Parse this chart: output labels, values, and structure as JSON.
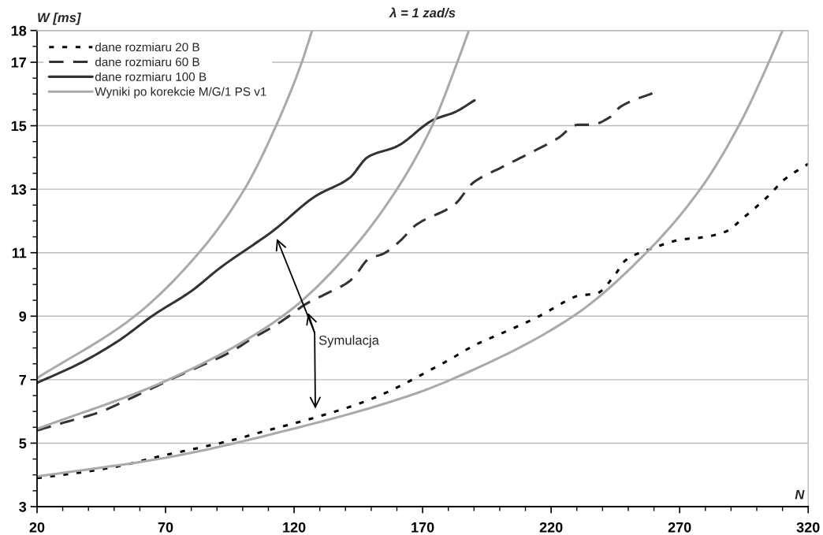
{
  "chart_data": {
    "type": "line",
    "title": "λ = 1 zad/s",
    "xlabel": "N",
    "ylabel": "W [ms]",
    "xlim": [
      20,
      320
    ],
    "xticks": [
      20,
      {
        "value": 30,
        "label": null
      },
      {
        "value": 40,
        "label": null
      },
      {
        "value": 50,
        "label": null
      },
      {
        "value": 60,
        "label": null
      },
      70,
      {
        "value": 80,
        "label": null
      },
      {
        "value": 90,
        "label": null
      },
      {
        "value": 100,
        "label": null
      },
      {
        "value": 110,
        "label": null
      },
      120,
      {
        "value": 130,
        "label": null
      },
      {
        "value": 140,
        "label": null
      },
      {
        "value": 150,
        "label": null
      },
      {
        "value": 160,
        "label": null
      },
      170,
      {
        "value": 180,
        "label": null
      },
      {
        "value": 190,
        "label": null
      },
      {
        "value": 200,
        "label": null
      },
      {
        "value": 210,
        "label": null
      },
      220,
      {
        "value": 230,
        "label": null
      },
      {
        "value": 240,
        "label": null
      },
      {
        "value": 250,
        "label": null
      },
      {
        "value": 260,
        "label": null
      },
      270,
      {
        "value": 280,
        "label": null
      },
      {
        "value": 290,
        "label": null
      },
      {
        "value": 300,
        "label": null
      },
      {
        "value": 310,
        "label": null
      },
      320
    ],
    "ylim": [
      3,
      18
    ],
    "yticks": [
      3,
      {
        "value": 3.5,
        "label": null
      },
      {
        "value": 4,
        "label": null
      },
      {
        "value": 4.5,
        "label": null
      },
      5,
      {
        "value": 5.5,
        "label": null
      },
      {
        "value": 6,
        "label": null
      },
      {
        "value": 6.5,
        "label": null
      },
      7,
      {
        "value": 7.5,
        "label": null
      },
      {
        "value": 8,
        "label": null
      },
      {
        "value": 8.5,
        "label": null
      },
      9,
      {
        "value": 9.5,
        "label": null
      },
      {
        "value": 10,
        "label": null
      },
      {
        "value": 10.5,
        "label": null
      },
      11,
      {
        "value": 11.5,
        "label": null
      },
      {
        "value": 12,
        "label": null
      },
      {
        "value": 12.5,
        "label": null
      },
      13,
      {
        "value": 13.5,
        "label": null
      },
      {
        "value": 14,
        "label": null
      },
      {
        "value": 14.5,
        "label": null
      },
      15,
      {
        "value": 15.5,
        "label": null
      },
      {
        "value": 16,
        "label": null
      },
      {
        "value": 16.5,
        "label": null
      },
      17,
      {
        "value": 17.5,
        "label": null
      },
      18
    ],
    "grid": "y",
    "legend": "top left",
    "series": [
      {
        "name": "dane rozmiaru 20 B",
        "color": "#000000",
        "line_style": "dotted",
        "x": [
          20,
          36.3,
          51.6,
          66.9,
          80,
          96.7,
          107.7,
          128.3,
          148.8,
          162,
          166,
          180.4,
          190.6,
          201,
          210.2,
          216.3,
          226.4,
          230.4,
          237.8,
          244.8,
          248.8,
          260.2,
          270.3,
          279.5,
          287.8,
          294.8,
          305.3,
          310.2,
          320
        ],
        "values": [
          3.9,
          4.07,
          4.27,
          4.57,
          4.8,
          5.11,
          5.36,
          5.81,
          6.35,
          6.83,
          7.0,
          7.63,
          8.1,
          8.47,
          8.8,
          9.04,
          9.5,
          9.64,
          9.72,
          10.3,
          10.75,
          11.16,
          11.41,
          11.49,
          11.66,
          12.1,
          12.85,
          13.27,
          13.8
        ]
      },
      {
        "name": "dane rozmiaru 60 B",
        "color": "#333333",
        "line_style": "dashed",
        "x": [
          20,
          30.1,
          44.5,
          54.7,
          64.8,
          73,
          81.3,
          95.5,
          103.7,
          110.8,
          118,
          124.3,
          132.3,
          141.5,
          144.6,
          148.8,
          155,
          161.1,
          167.2,
          182.6,
          189.6,
          201,
          213.3,
          222.5,
          230.4,
          235.6,
          242.7,
          247,
          260.2
        ],
        "values": [
          5.4,
          5.64,
          5.98,
          6.35,
          6.73,
          7.05,
          7.35,
          7.88,
          8.3,
          8.62,
          9.0,
          9.37,
          9.7,
          10.1,
          10.37,
          10.79,
          10.98,
          11.36,
          11.86,
          12.53,
          13.2,
          13.7,
          14.2,
          14.6,
          15.03,
          15.03,
          15.26,
          15.6,
          16.05
        ]
      },
      {
        "name": "dane rozmiaru 100 B",
        "color": "#333333",
        "line_style": "solid",
        "x": [
          20,
          36.3,
          51.6,
          65.4,
          80,
          91.5,
          112,
          128.3,
          141.5,
          148.8,
          160,
          174.3,
          182.6,
          190.2
        ],
        "values": [
          6.9,
          7.5,
          8.22,
          9.04,
          9.79,
          10.54,
          11.7,
          12.78,
          13.35,
          14.02,
          14.35,
          15.19,
          15.43,
          15.8
        ]
      },
      {
        "name": "Wyniki po korekcie M/G/1 PS v1",
        "color": "#aaaaaa",
        "line_style": "solid",
        "x": [
          20,
          58,
          83,
          100.7,
          113,
          123,
          127
        ],
        "values": [
          7.05,
          9,
          11,
          13,
          15,
          17,
          18
        ]
      },
      {
        "color": "#aaaaaa",
        "line_style": "solid",
        "x": [
          20,
          70,
          115.5,
          141.5,
          160,
          173.7,
          183.5,
          188
        ],
        "values": [
          5.45,
          6.96,
          9,
          11,
          13,
          15,
          17,
          18
        ]
      },
      {
        "color": "#aaaaaa",
        "line_style": "solid",
        "x": [
          20,
          70,
          120,
          165,
          181,
          228.6,
          257,
          278,
          293,
          304.7,
          310
        ],
        "values": [
          3.95,
          4.54,
          5.46,
          6.5,
          7,
          9,
          11,
          13,
          15,
          17,
          18
        ]
      }
    ],
    "annotations": [
      "Symulacja"
    ]
  }
}
